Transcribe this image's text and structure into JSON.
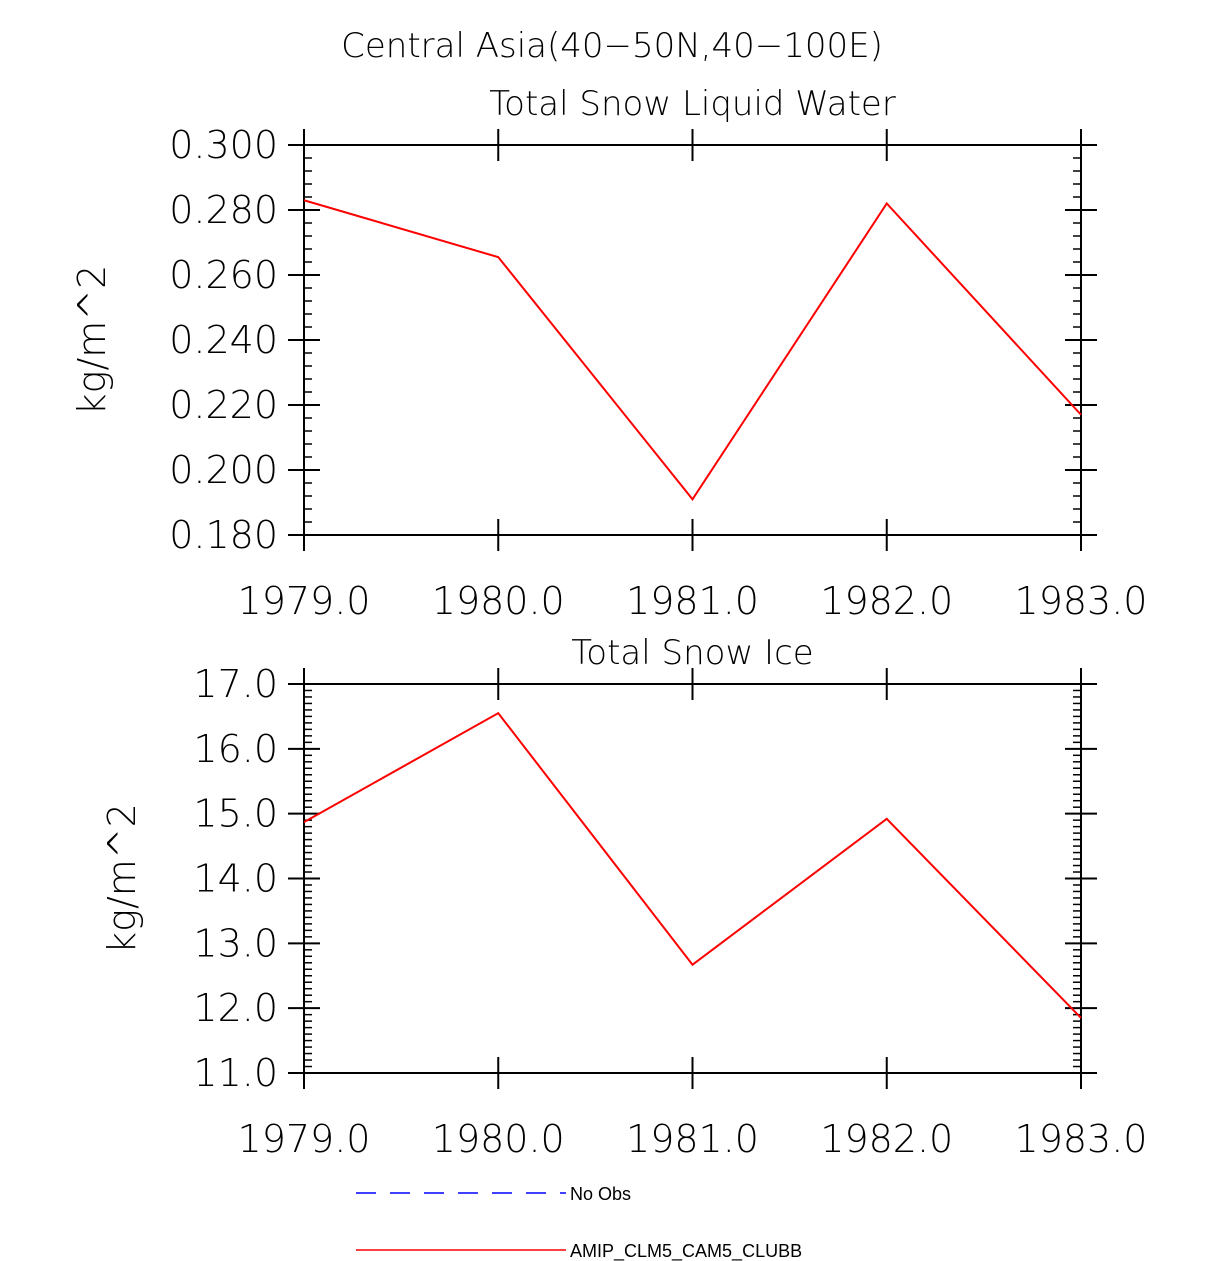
{
  "figure_title": "Central Asia(40−50N,40−100E)",
  "chart_data": [
    {
      "type": "line",
      "title": "Total Snow Liquid Water",
      "xlabel": "",
      "ylabel": "kg/m^2",
      "x": [
        1979.0,
        1980.0,
        1981.0,
        1982.0,
        1983.0
      ],
      "xtick_labels": [
        "1979.0",
        "1980.0",
        "1981.0",
        "1982.0",
        "1983.0"
      ],
      "xlim": [
        1979.0,
        1983.0
      ],
      "ylim": [
        0.18,
        0.3
      ],
      "ytick_values": [
        0.18,
        0.2,
        0.22,
        0.24,
        0.26,
        0.28,
        0.3
      ],
      "ytick_labels": [
        "0.180",
        "0.200",
        "0.220",
        "0.240",
        "0.260",
        "0.280",
        "0.300"
      ],
      "grid": false,
      "series": [
        {
          "name": "AMIP_CLM5_CAM5_CLUBB",
          "color": "#ff0000",
          "values": [
            0.283,
            0.2655,
            0.191,
            0.282,
            0.217
          ]
        }
      ]
    },
    {
      "type": "line",
      "title": "Total Snow Ice",
      "xlabel": "",
      "ylabel": "kg/m^2",
      "x": [
        1979.0,
        1980.0,
        1981.0,
        1982.0,
        1983.0
      ],
      "xtick_labels": [
        "1979.0",
        "1980.0",
        "1981.0",
        "1982.0",
        "1983.0"
      ],
      "xlim": [
        1979.0,
        1983.0
      ],
      "ylim": [
        11.0,
        17.0
      ],
      "ytick_values": [
        11,
        12,
        13,
        14,
        15,
        16,
        17
      ],
      "ytick_labels": [
        "11.0",
        "12.0",
        "13.0",
        "14.0",
        "15.0",
        "16.0",
        "17.0"
      ],
      "grid": false,
      "series": [
        {
          "name": "AMIP_CLM5_CAM5_CLUBB",
          "color": "#ff0000",
          "values": [
            14.87,
            16.55,
            12.67,
            14.92,
            11.85
          ]
        }
      ]
    }
  ],
  "legend": {
    "placement": "bottom-center",
    "entries": [
      {
        "label": "No Obs",
        "color": "#0000ff",
        "style": "dashed"
      },
      {
        "label": "AMIP_CLM5_CAM5_CLUBB",
        "color": "#ff0000",
        "style": "solid"
      }
    ]
  }
}
